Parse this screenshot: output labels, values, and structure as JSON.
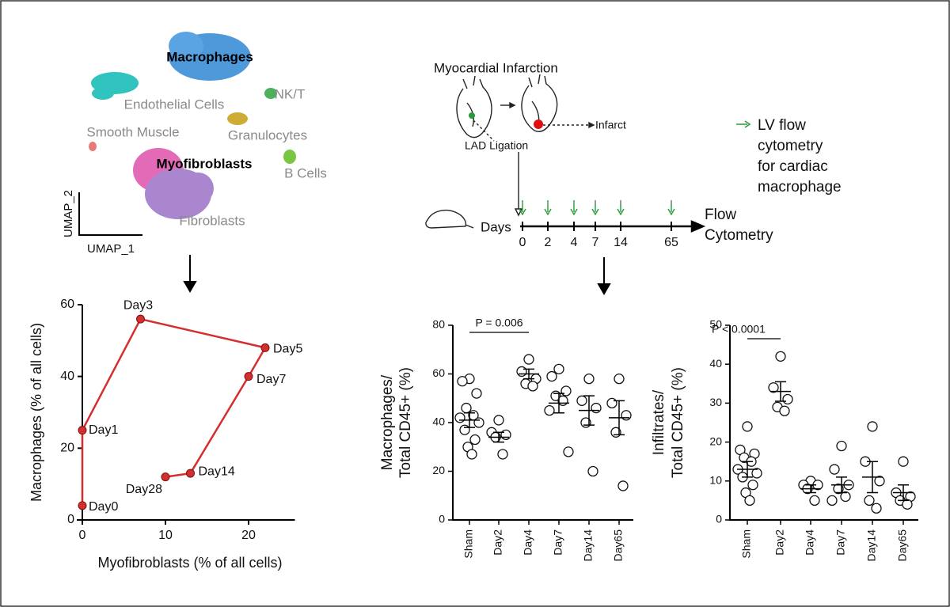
{
  "umap": {
    "clusters": [
      "Macrophages",
      "Endothelial Cells",
      "NK/T",
      "Smooth Muscle",
      "Granulocytes",
      "Myofibroblasts",
      "B Cells",
      "Fibroblasts"
    ],
    "axes": [
      "UMAP_2",
      "UMAP_1"
    ]
  },
  "schematic": {
    "title": "Myocardial Infarction",
    "ligation": "LAD Ligation",
    "infarct": "Infarct",
    "days_label": "Days",
    "days": [
      0,
      2,
      4,
      7,
      14,
      65
    ],
    "readout": [
      "Flow",
      "Cytometry"
    ],
    "legend": [
      "LV flow",
      "cytometry",
      "for cardiac",
      "macrophage"
    ]
  },
  "chart_data": [
    {
      "type": "line",
      "x": [
        0,
        0,
        7,
        22,
        20,
        13,
        10
      ],
      "values": [
        4,
        25,
        56,
        48,
        40,
        13,
        12
      ],
      "point_labels": [
        "Day0",
        "Day1",
        "Day3",
        "Day5",
        "Day7",
        "Day14",
        "Day28"
      ],
      "color": "#d32f2f",
      "xlabel": "Myofibroblasts (% of all cells)",
      "ylabel": "Macrophages (% of all cells)",
      "xlim": [
        0,
        25
      ],
      "xticks": [
        0,
        10,
        20
      ],
      "ylim": [
        0,
        60
      ],
      "yticks": [
        0,
        20,
        40,
        60
      ]
    },
    {
      "type": "dot",
      "categories": [
        "Sham",
        "Day2",
        "Day4",
        "Day7",
        "Day14",
        "Day65"
      ],
      "values": [
        [
          58,
          57,
          52,
          46,
          43,
          42,
          40,
          37,
          33,
          30,
          27
        ],
        [
          41,
          36,
          35,
          34,
          27
        ],
        [
          66,
          61,
          58,
          56,
          55
        ],
        [
          62,
          59,
          53,
          51,
          49,
          45,
          28
        ],
        [
          58,
          49,
          46,
          40,
          20
        ],
        [
          58,
          48,
          43,
          36,
          14
        ]
      ],
      "means": [
        41,
        34,
        60,
        48,
        45,
        42
      ],
      "sems": [
        3,
        2,
        2,
        4,
        6,
        7
      ],
      "ylabel": [
        "Macrophages/",
        "Total CD45+ (%)"
      ],
      "annotation": "P = 0.006",
      "ylim": [
        0,
        80
      ],
      "yticks": [
        0,
        20,
        40,
        60,
        80
      ]
    },
    {
      "type": "dot",
      "categories": [
        "Sham",
        "Day2",
        "Day4",
        "Day7",
        "Day14",
        "Day65"
      ],
      "values": [
        [
          24,
          18,
          17,
          16,
          15,
          13,
          12,
          11,
          9,
          7,
          5
        ],
        [
          42,
          34,
          31,
          29,
          28
        ],
        [
          10,
          9,
          9,
          8,
          5
        ],
        [
          19,
          13,
          9,
          8,
          6,
          5
        ],
        [
          24,
          15,
          10,
          5,
          3
        ],
        [
          15,
          7,
          6,
          5,
          4
        ]
      ],
      "means": [
        13,
        33,
        8,
        9,
        11,
        7
      ],
      "sems": [
        2,
        2.5,
        1,
        2,
        4,
        2
      ],
      "ylabel": [
        "Infiltrates/",
        "Total CD45+ (%)"
      ],
      "annotation": "P < 0.0001",
      "ylim": [
        0,
        50
      ],
      "yticks": [
        0,
        10,
        20,
        30,
        40,
        50
      ]
    }
  ]
}
